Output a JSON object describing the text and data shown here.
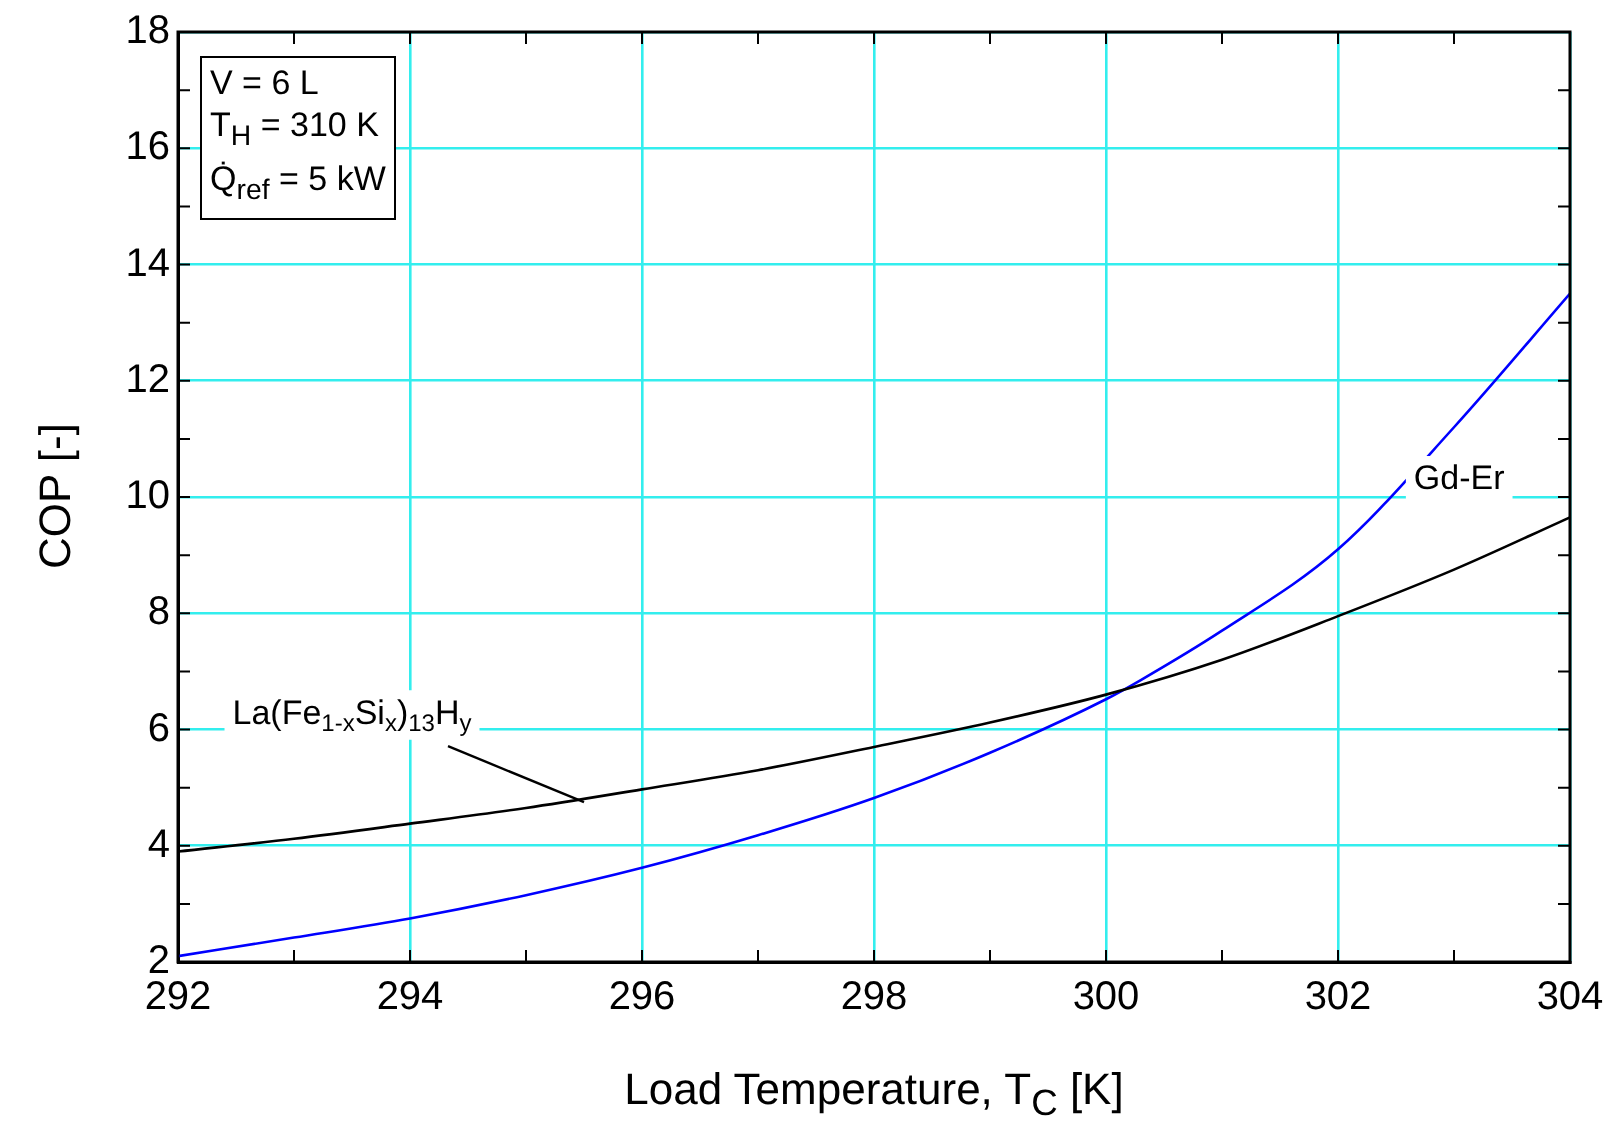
{
  "chart_data": {
    "type": "line",
    "xlabel": "Load Temperature, T$_{C}$  [K]",
    "ylabel": "COP  [-]",
    "xlim": [
      292,
      304
    ],
    "xticks": [
      292,
      {
        "value": 293,
        "label": null
      },
      294,
      {
        "value": 295,
        "label": null
      },
      296,
      {
        "value": 297,
        "label": null
      },
      298,
      {
        "value": 299,
        "label": null
      },
      300,
      {
        "value": 301,
        "label": null
      },
      302,
      {
        "value": 303,
        "label": null
      },
      304
    ],
    "ylim": [
      2,
      18
    ],
    "yticks": [
      2,
      {
        "value": 3,
        "label": null
      },
      4,
      {
        "value": 5,
        "label": null
      },
      6,
      {
        "value": 7,
        "label": null
      },
      8,
      {
        "value": 9,
        "label": null
      },
      10,
      {
        "value": 11,
        "label": null
      },
      12,
      {
        "value": 13,
        "label": null
      },
      14,
      {
        "value": 15,
        "label": null
      },
      16,
      {
        "value": 17,
        "label": null
      },
      18
    ],
    "grid": true,
    "legend": false,
    "marker": "none",
    "line_style": "solid",
    "series": [
      {
        "color": "#000000",
        "x": [
          292,
          293,
          294,
          295,
          296,
          297,
          298,
          299,
          300,
          301,
          302,
          303,
          304
        ],
        "values": [
          3.9,
          4.12,
          4.38,
          4.65,
          4.97,
          5.3,
          5.7,
          6.12,
          6.6,
          7.2,
          7.95,
          8.75,
          9.65
        ]
      },
      {
        "color": "#0000ff",
        "x": [
          292,
          293,
          294,
          295,
          296,
          297,
          298,
          299,
          300,
          300.3,
          301,
          302,
          303,
          304
        ],
        "values": [
          2.1,
          2.42,
          2.75,
          3.15,
          3.62,
          4.18,
          4.82,
          5.6,
          6.52,
          6.85,
          7.7,
          9.1,
          11.2,
          13.5
        ]
      }
    ],
    "annotations": [
      "V = 6 L",
      "T$_{H}$ = 310 K",
      "Q̇$_{ref}$  = 5 kW",
      {
        "text": "La(Fe$_{1-x}$Si$_{x}$)$_{13}$H$_{y}$",
        "x": 295.5,
        "y": 4.75
      },
      {
        "text": "Gd-Er",
        "x": 302.7,
        "y": 10.4
      }
    ]
  }
}
